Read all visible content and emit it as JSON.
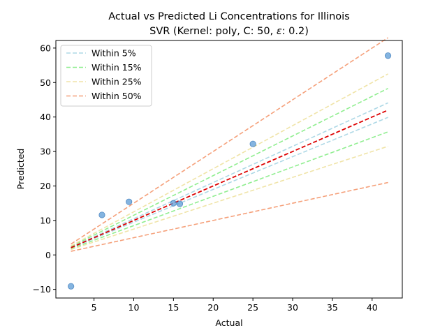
{
  "chart_data": {
    "type": "scatter",
    "title": "Actual vs Predicted Li Concentrations for Illinois",
    "subtitle_prefix": "SVR (Kernel: poly, C: 50, ",
    "subtitle_symbol": "ε",
    "subtitle_suffix": ": 0.2)",
    "xlabel": "Actual",
    "ylabel": "Predicted",
    "xlim": [
      0.2,
      43.8
    ],
    "ylim": [
      -12.5,
      62.2
    ],
    "xticks": [
      5,
      10,
      15,
      20,
      25,
      30,
      35,
      40
    ],
    "yticks": [
      -10,
      0,
      10,
      20,
      30,
      40,
      50,
      60
    ],
    "grid": false,
    "legend_position": "top-left",
    "points": {
      "color": "#5b9bd5",
      "x": [
        2.1,
        6.0,
        9.4,
        15.0,
        15.8,
        25.0,
        42.0
      ],
      "y": [
        -9.1,
        11.6,
        15.4,
        15.0,
        14.8,
        32.2,
        57.8
      ]
    },
    "identity_line": {
      "color": "#dd0000",
      "x": [
        2.1,
        42.0
      ]
    },
    "bands": [
      {
        "name": "Within 5%",
        "fraction": 0.05,
        "color": "#add8e6"
      },
      {
        "name": "Within 15%",
        "fraction": 0.15,
        "color": "#90ee90"
      },
      {
        "name": "Within 25%",
        "fraction": 0.25,
        "color": "#f0e4a8"
      },
      {
        "name": "Within 50%",
        "fraction": 0.5,
        "color": "#f5a07a"
      }
    ]
  }
}
